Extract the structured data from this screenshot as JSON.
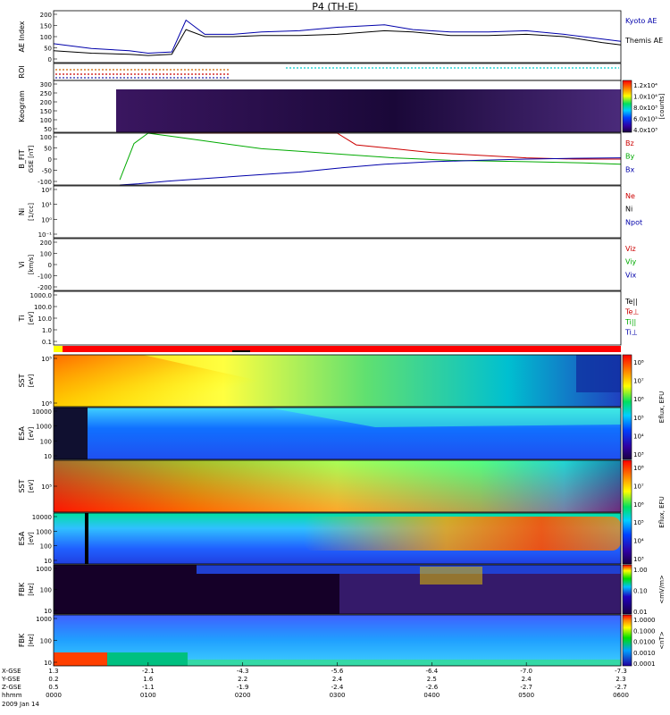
{
  "chart_data": {
    "type": "multi-panel",
    "title": "P4 (TH-E)",
    "date_label": "2009 Jan 14",
    "x_axis": {
      "row_labels": [
        "X-GSE",
        "Y-GSE",
        "Z-GSE",
        "hhmm"
      ],
      "times": [
        "0000",
        "0100",
        "0200",
        "0300",
        "0400",
        "0500",
        "0600"
      ],
      "x_gse": [
        "1.3",
        "-2.1",
        "-4.3",
        "-5.6",
        "-6.4",
        "-7.0",
        "-7.3"
      ],
      "y_gse": [
        "0.2",
        "1.6",
        "2.2",
        "2.4",
        "2.5",
        "2.4",
        "2.3"
      ],
      "z_gse": [
        "0.5",
        "-1.1",
        "-1.9",
        "-2.4",
        "-2.6",
        "-2.7",
        "-2.7"
      ]
    },
    "panels": [
      {
        "id": "ae",
        "ylabel": "AE Index",
        "yticks": [
          "200",
          "150",
          "100",
          "50",
          "0"
        ],
        "ylim": [
          -20,
          200
        ],
        "legend": [
          {
            "name": "Kyoto AE",
            "color": "#0000aa"
          },
          {
            "name": "Themis AE",
            "color": "#000000"
          }
        ],
        "series": [
          {
            "name": "Kyoto AE",
            "t": [
              0,
              0.4,
              0.8,
              1.0,
              1.25,
              1.4,
              1.6,
              1.9,
              2.2,
              2.6,
              3.0,
              3.5,
              3.8,
              4.2,
              4.6,
              5.0,
              5.4,
              5.8,
              6.0
            ],
            "values": [
              60,
              40,
              30,
              20,
              25,
              160,
              100,
              100,
              110,
              115,
              130,
              140,
              120,
              110,
              110,
              115,
              100,
              80,
              70
            ]
          },
          {
            "name": "Themis AE",
            "t": [
              0,
              0.4,
              0.8,
              1.0,
              1.25,
              1.4,
              1.6,
              1.9,
              2.2,
              2.6,
              3.0,
              3.5,
              3.8,
              4.2,
              4.6,
              5.0,
              5.4,
              5.8,
              6.0
            ],
            "values": [
              30,
              20,
              15,
              10,
              15,
              120,
              90,
              90,
              95,
              95,
              100,
              115,
              110,
              95,
              95,
              100,
              90,
              65,
              55
            ]
          }
        ]
      },
      {
        "id": "roi",
        "ylabel": "ROI"
      },
      {
        "id": "keogram",
        "ylabel": "Keogram",
        "yticks": [
          "300",
          "250",
          "200",
          "150",
          "100",
          "50"
        ],
        "colorbar": {
          "label": "[counts]",
          "ticks": [
            "1.2x10⁴",
            "1.0x10⁴",
            "8.0x10³",
            "6.0x10³",
            "4.0x10³"
          ]
        }
      },
      {
        "id": "bfit",
        "ylabel": "B_FIT",
        "yunit": "GSE [nT]",
        "yticks": [
          "100",
          "50",
          "0",
          "-50",
          "-100"
        ],
        "ylim": [
          -100,
          100
        ],
        "legend": [
          {
            "name": "Bz",
            "color": "#cc0000"
          },
          {
            "name": "By",
            "color": "#00aa00"
          },
          {
            "name": "Bx",
            "color": "#0000aa"
          }
        ],
        "series": [
          {
            "name": "Bz",
            "t": [
              1.0,
              2.0,
              3.0,
              3.2,
              3.6,
              4.0,
              4.5,
              5.0,
              5.5,
              6.0
            ],
            "values": [
              100,
              100,
              100,
              55,
              40,
              25,
              15,
              5,
              0,
              0
            ]
          },
          {
            "name": "By",
            "t": [
              0.7,
              0.85,
              1.0,
              1.3,
              1.8,
              2.2,
              2.6,
              3.0,
              3.6,
              4.2,
              5.0,
              5.6,
              6.0
            ],
            "values": [
              -80,
              60,
              100,
              85,
              60,
              40,
              30,
              20,
              5,
              -5,
              -10,
              -15,
              -20
            ]
          },
          {
            "name": "Bx",
            "t": [
              0.7,
              0.9,
              1.2,
              1.6,
              2.0,
              2.6,
              3.0,
              3.5,
              4.0,
              4.5,
              5.0,
              5.5,
              6.0
            ],
            "values": [
              -100,
              -95,
              -85,
              -75,
              -65,
              -50,
              -35,
              -20,
              -10,
              -5,
              0,
              3,
              5
            ]
          }
        ]
      },
      {
        "id": "ni",
        "ylabel": "Ni",
        "yunit": "[1/cc]",
        "yticks": [
          "10²",
          "10¹",
          "10⁰",
          "10⁻¹"
        ],
        "legend": [
          {
            "name": "Ne",
            "color": "#cc0000"
          },
          {
            "name": "Ni",
            "color": "#000000"
          },
          {
            "name": "Npot",
            "color": "#0000aa"
          }
        ]
      },
      {
        "id": "vi",
        "ylabel": "Vi",
        "yunit": "[km/s]",
        "yticks": [
          "200",
          "100",
          "0",
          "-100",
          "-200"
        ],
        "legend": [
          {
            "name": "Viz",
            "color": "#cc0000"
          },
          {
            "name": "Viy",
            "color": "#00aa00"
          },
          {
            "name": "Vix",
            "color": "#0000aa"
          }
        ]
      },
      {
        "id": "ti",
        "ylabel": "Ti",
        "yunit": "[eV]",
        "yticks": [
          "1000.0",
          "100.0",
          "10.0",
          "1.0",
          "0.1"
        ],
        "legend": [
          {
            "name": "Te||",
            "color": "#000000"
          },
          {
            "name": "Te⊥",
            "color": "#cc0000"
          },
          {
            "name": "Ti||",
            "color": "#00aa00"
          },
          {
            "name": "Ti⊥",
            "color": "#0000aa"
          }
        ]
      },
      {
        "id": "sst_i",
        "ylabel": "SST",
        "yunit": "[eV]",
        "yticks": [
          "10⁵",
          "10⁶"
        ]
      },
      {
        "id": "esa_i",
        "ylabel": "ESA",
        "yunit": "[eV]",
        "yticks": [
          "10000",
          "1000",
          "100",
          "10"
        ]
      },
      {
        "id": "sst_e",
        "ylabel": "SST",
        "yunit": "[eV]",
        "yticks": [
          "10⁵"
        ]
      },
      {
        "id": "esa_e",
        "ylabel": "ESA",
        "yunit": "[eV]",
        "yticks": [
          "10000",
          "1000",
          "100",
          "10"
        ]
      },
      {
        "id": "fbk_e",
        "ylabel": "FBK",
        "yunit": "[Hz]",
        "yticks": [
          "1000",
          "100",
          "10"
        ],
        "colorbar": {
          "label": "<mV/m>",
          "ticks": [
            "1.00",
            "0.10",
            "0.01"
          ]
        }
      },
      {
        "id": "fbk_b",
        "ylabel": "FBK",
        "yunit": "[Hz]",
        "yticks": [
          "1000",
          "100",
          "10"
        ],
        "colorbar": {
          "label": "<nT>",
          "ticks": [
            "1.0000",
            "0.1000",
            "0.0100",
            "0.0010",
            "0.0001"
          ]
        }
      }
    ],
    "eflux_colorbar": {
      "label": "Eflux, EFU",
      "ticks": [
        "10⁸",
        "10⁷",
        "10⁶",
        "10⁵",
        "10⁴",
        "10³"
      ]
    }
  }
}
